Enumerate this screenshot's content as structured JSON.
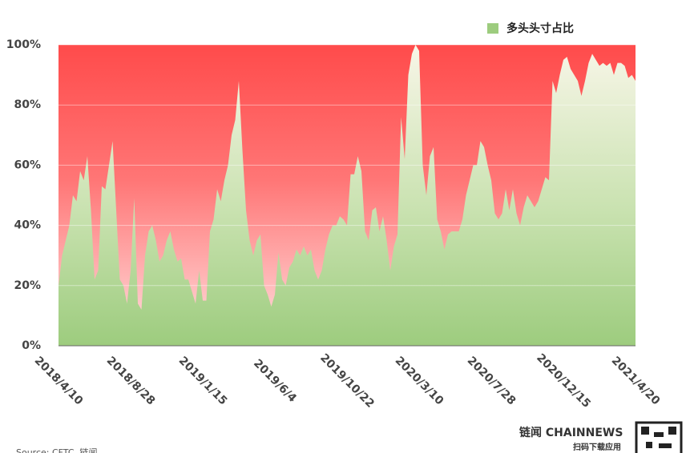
{
  "chart_data": {
    "type": "area",
    "categories": [
      "2018/4/10",
      null,
      null,
      null,
      null,
      null,
      null,
      null,
      null,
      null,
      null,
      null,
      null,
      null,
      null,
      null,
      null,
      null,
      null,
      null,
      "2018/8/28",
      null,
      null,
      null,
      null,
      null,
      null,
      null,
      null,
      null,
      null,
      null,
      null,
      null,
      null,
      null,
      null,
      null,
      null,
      null,
      "2019/1/15",
      null,
      null,
      null,
      null,
      null,
      null,
      null,
      null,
      null,
      null,
      null,
      null,
      null,
      null,
      null,
      null,
      null,
      null,
      null,
      "2019/6/4",
      null,
      null,
      null,
      null,
      null,
      null,
      null,
      null,
      null,
      null,
      null,
      null,
      null,
      null,
      null,
      null,
      null,
      null,
      null,
      "2019/10/22",
      null,
      null,
      null,
      null,
      null,
      null,
      null,
      null,
      null,
      null,
      null,
      null,
      null,
      null,
      null,
      null,
      null,
      null,
      null,
      "2020/3/10",
      null,
      null,
      null,
      null,
      null,
      null,
      null,
      null,
      null,
      null,
      null,
      null,
      null,
      null,
      null,
      null,
      null,
      null,
      null,
      "2020/7/28",
      null,
      null,
      null,
      null,
      null,
      null,
      null,
      null,
      null,
      null,
      null,
      null,
      null,
      null,
      null,
      null,
      null,
      null,
      null,
      "2020/12/15",
      null,
      null,
      null,
      null,
      null,
      null,
      null,
      null,
      null,
      null,
      null,
      null,
      null,
      null,
      null,
      null,
      null,
      null,
      null,
      "2021/4/20"
    ],
    "series": [
      {
        "name": "多头头寸占比",
        "color": "#9dcc7e",
        "values": [
          20,
          30,
          35,
          40,
          50,
          48,
          58,
          55,
          63,
          45,
          22,
          25,
          53,
          52,
          60,
          68,
          45,
          22,
          20,
          14,
          25,
          49,
          14,
          12,
          30,
          38,
          40,
          35,
          28,
          30,
          35,
          38,
          32,
          28,
          29,
          22,
          22,
          18,
          14,
          25,
          15,
          15,
          38,
          42,
          52,
          48,
          55,
          60,
          70,
          75,
          88,
          65,
          45,
          35,
          30,
          35,
          37,
          20,
          17,
          13,
          17,
          31,
          22,
          20,
          26,
          28,
          32,
          30,
          33,
          30,
          32,
          25,
          22,
          25,
          32,
          37,
          40,
          40,
          43,
          42,
          40,
          57,
          57,
          63,
          58,
          38,
          35,
          45,
          46,
          38,
          43,
          35,
          25,
          33,
          37,
          76,
          62,
          90,
          97,
          100,
          98,
          60,
          50,
          63,
          66,
          42,
          38,
          32,
          37,
          38,
          38,
          38,
          42,
          50,
          55,
          60,
          60,
          68,
          66,
          60,
          55,
          44,
          42,
          44,
          52,
          45,
          52,
          44,
          40,
          46,
          50,
          48,
          46,
          48,
          52,
          56,
          55,
          88,
          84,
          90,
          95,
          96,
          92,
          90,
          88,
          83,
          88,
          94,
          97,
          95,
          93,
          94,
          93,
          94,
          90,
          94,
          94,
          93,
          89,
          90,
          88
        ]
      }
    ],
    "background_color": "#ff4b4b",
    "ylim": [
      0,
      100
    ],
    "yticks": [
      {
        "value": 0,
        "label": "0%"
      },
      {
        "value": 20,
        "label": "20%"
      },
      {
        "value": 40,
        "label": "40%"
      },
      {
        "value": 60,
        "label": "60%"
      },
      {
        "value": 80,
        "label": "80%"
      },
      {
        "value": 100,
        "label": "100%"
      }
    ],
    "grid": true,
    "legend": "top-right",
    "source": "Source: CFTC, 链闻",
    "brand": "链闻 CHAINNEWS",
    "brand_note": "扫码下载应用"
  }
}
